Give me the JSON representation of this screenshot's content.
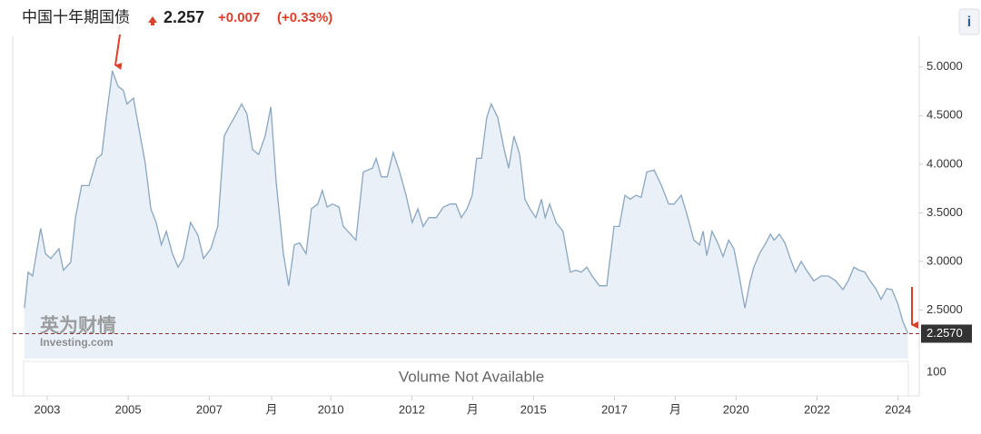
{
  "chart_data": {
    "type": "area",
    "title": "中国十年期国债",
    "price": "2.257",
    "change": "+0.007",
    "change_percent": "(+0.33%)",
    "info_icon": "i",
    "watermark": [
      "英为财情",
      "Investing.com"
    ],
    "volume_note": "Volume Not Available",
    "volume_ticks": [
      "100"
    ],
    "current_marker": {
      "value": 2.257,
      "label": "2.2570"
    },
    "xlim": [
      2002.15,
      2024.5
    ],
    "ylim": [
      2.0,
      5.25
    ],
    "grid": false,
    "xticks": [
      2003,
      2005,
      2007,
      {
        "value": 2008.54,
        "label": "月"
      },
      2010,
      2012,
      {
        "value": 2013.5,
        "label": "月"
      },
      2015,
      2017,
      {
        "value": 2018.5,
        "label": "月"
      },
      2020,
      2022,
      2024
    ],
    "yticks": [
      {
        "value": 2.5,
        "label": "2.5000"
      },
      {
        "value": 3,
        "label": "3.0000"
      },
      {
        "value": 3.5,
        "label": "3.5000"
      },
      {
        "value": 4,
        "label": "4.0000"
      },
      {
        "value": 4.5,
        "label": "4.5000"
      },
      {
        "value": 5,
        "label": "5.0000"
      }
    ],
    "series": [
      {
        "color": "#8aa6c1",
        "fill": "#e9f0f7",
        "x": [
          2002.44,
          2002.53,
          2002.64,
          2002.84,
          2002.96,
          2003.09,
          2003.29,
          2003.4,
          2003.58,
          2003.7,
          2003.85,
          2004.03,
          2004.23,
          2004.35,
          2004.46,
          2004.61,
          2004.75,
          2004.88,
          2004.97,
          2005.13,
          2005.26,
          2005.42,
          2005.56,
          2005.69,
          2005.82,
          2005.94,
          2006.09,
          2006.23,
          2006.36,
          2006.54,
          2006.72,
          2006.86,
          2007.04,
          2007.21,
          2007.37,
          2007.48,
          2007.62,
          2007.8,
          2007.93,
          2008.07,
          2008.22,
          2008.38,
          2008.52,
          2008.65,
          2008.83,
          2008.96,
          2009.1,
          2009.23,
          2009.39,
          2009.52,
          2009.68,
          2009.79,
          2009.91,
          2010.04,
          2010.2,
          2010.31,
          2010.42,
          2010.62,
          2010.8,
          2011.03,
          2011.12,
          2011.25,
          2011.39,
          2011.54,
          2011.7,
          2011.86,
          2012.01,
          2012.15,
          2012.28,
          2012.42,
          2012.6,
          2012.78,
          2012.95,
          2013.09,
          2013.22,
          2013.36,
          2013.49,
          2013.6,
          2013.72,
          2013.85,
          2013.96,
          2014.12,
          2014.28,
          2014.39,
          2014.52,
          2014.66,
          2014.79,
          2014.93,
          2015.06,
          2015.2,
          2015.29,
          2015.4,
          2015.56,
          2015.73,
          2015.91,
          2016.05,
          2016.18,
          2016.32,
          2016.45,
          2016.63,
          2016.81,
          2016.99,
          2017.12,
          2017.26,
          2017.39,
          2017.53,
          2017.66,
          2017.8,
          2017.98,
          2018.16,
          2018.34,
          2018.47,
          2018.65,
          2018.78,
          2018.96,
          2019.1,
          2019.19,
          2019.28,
          2019.41,
          2019.55,
          2019.68,
          2019.82,
          2019.95,
          2020.08,
          2020.22,
          2020.35,
          2020.44,
          2020.58,
          2020.71,
          2020.85,
          2020.94,
          2021.07,
          2021.21,
          2021.34,
          2021.47,
          2021.61,
          2021.74,
          2021.92,
          2022.1,
          2022.28,
          2022.46,
          2022.64,
          2022.77,
          2022.91,
          2023.04,
          2023.18,
          2023.31,
          2023.45,
          2023.58,
          2023.72,
          2023.85,
          2023.99,
          2024.12,
          2024.25
        ],
        "values": [
          2.52,
          2.89,
          2.85,
          3.34,
          3.08,
          3.03,
          3.13,
          2.91,
          2.99,
          3.45,
          3.78,
          3.78,
          4.06,
          4.1,
          4.48,
          4.96,
          4.8,
          4.76,
          4.62,
          4.68,
          4.38,
          4.01,
          3.54,
          3.4,
          3.17,
          3.31,
          3.08,
          2.94,
          3.03,
          3.4,
          3.27,
          3.03,
          3.13,
          3.36,
          4.29,
          4.38,
          4.48,
          4.62,
          4.52,
          4.15,
          4.1,
          4.29,
          4.59,
          3.82,
          3.08,
          2.75,
          3.17,
          3.19,
          3.08,
          3.54,
          3.59,
          3.73,
          3.56,
          3.59,
          3.56,
          3.36,
          3.31,
          3.22,
          3.92,
          3.96,
          4.06,
          3.87,
          3.87,
          4.12,
          3.92,
          3.68,
          3.4,
          3.54,
          3.36,
          3.45,
          3.45,
          3.56,
          3.59,
          3.59,
          3.45,
          3.54,
          3.68,
          4.06,
          4.06,
          4.48,
          4.62,
          4.48,
          4.15,
          3.96,
          4.29,
          4.1,
          3.64,
          3.53,
          3.45,
          3.64,
          3.45,
          3.59,
          3.4,
          3.31,
          2.89,
          2.91,
          2.89,
          2.94,
          2.85,
          2.75,
          2.75,
          3.36,
          3.36,
          3.68,
          3.64,
          3.68,
          3.66,
          3.92,
          3.94,
          3.78,
          3.59,
          3.59,
          3.68,
          3.5,
          3.22,
          3.17,
          3.31,
          3.06,
          3.31,
          3.19,
          3.05,
          3.22,
          3.13,
          2.85,
          2.52,
          2.8,
          2.94,
          3.08,
          3.17,
          3.28,
          3.22,
          3.28,
          3.19,
          3.03,
          2.89,
          3.0,
          2.91,
          2.8,
          2.85,
          2.85,
          2.8,
          2.71,
          2.8,
          2.94,
          2.91,
          2.89,
          2.8,
          2.72,
          2.61,
          2.72,
          2.71,
          2.57,
          2.38,
          2.257
        ]
      }
    ]
  }
}
